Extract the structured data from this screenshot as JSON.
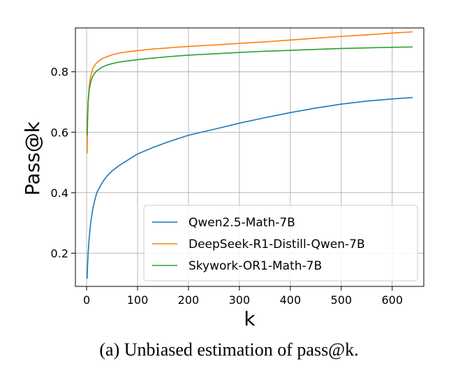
{
  "chart_data": {
    "type": "line",
    "title": "",
    "xlabel": "k",
    "ylabel": "Pass@k",
    "xlim": [
      -22,
      662
    ],
    "ylim": [
      0.09,
      0.945
    ],
    "xticks": [
      0,
      100,
      200,
      300,
      400,
      500,
      600
    ],
    "yticks": [
      0.2,
      0.4,
      0.6,
      0.8
    ],
    "xtick_labels": [
      "0",
      "100",
      "200",
      "300",
      "400",
      "500",
      "600"
    ],
    "ytick_labels": [
      "0.2",
      "0.4",
      "0.6",
      "0.8"
    ],
    "grid": true,
    "legend_position": "lower-right",
    "x": [
      1,
      2,
      3,
      5,
      8,
      12,
      16,
      20,
      30,
      40,
      50,
      64,
      80,
      100,
      128,
      160,
      200,
      256,
      300,
      350,
      400,
      450,
      500,
      550,
      600,
      640
    ],
    "series": [
      {
        "name": "Qwen2.5-Math-7B",
        "color": "#1f77b4",
        "values": [
          0.115,
          0.165,
          0.2,
          0.25,
          0.3,
          0.345,
          0.375,
          0.4,
          0.432,
          0.455,
          0.472,
          0.49,
          0.507,
          0.528,
          0.548,
          0.568,
          0.59,
          0.612,
          0.63,
          0.648,
          0.665,
          0.68,
          0.693,
          0.703,
          0.71,
          0.715
        ]
      },
      {
        "name": "DeepSeek-R1-Distill-Qwen-7B",
        "color": "#ff7f0e",
        "values": [
          0.53,
          0.64,
          0.7,
          0.75,
          0.785,
          0.81,
          0.822,
          0.83,
          0.843,
          0.85,
          0.856,
          0.862,
          0.866,
          0.87,
          0.875,
          0.879,
          0.884,
          0.889,
          0.894,
          0.899,
          0.905,
          0.911,
          0.917,
          0.922,
          0.928,
          0.932
        ]
      },
      {
        "name": "Skywork-OR1-Math-7B",
        "color": "#2ca02c",
        "values": [
          0.59,
          0.66,
          0.7,
          0.74,
          0.765,
          0.785,
          0.796,
          0.803,
          0.815,
          0.822,
          0.827,
          0.832,
          0.836,
          0.84,
          0.845,
          0.85,
          0.855,
          0.86,
          0.864,
          0.868,
          0.871,
          0.874,
          0.877,
          0.879,
          0.881,
          0.882
        ]
      }
    ]
  },
  "caption": "(a) Unbiased estimation of pass@k."
}
